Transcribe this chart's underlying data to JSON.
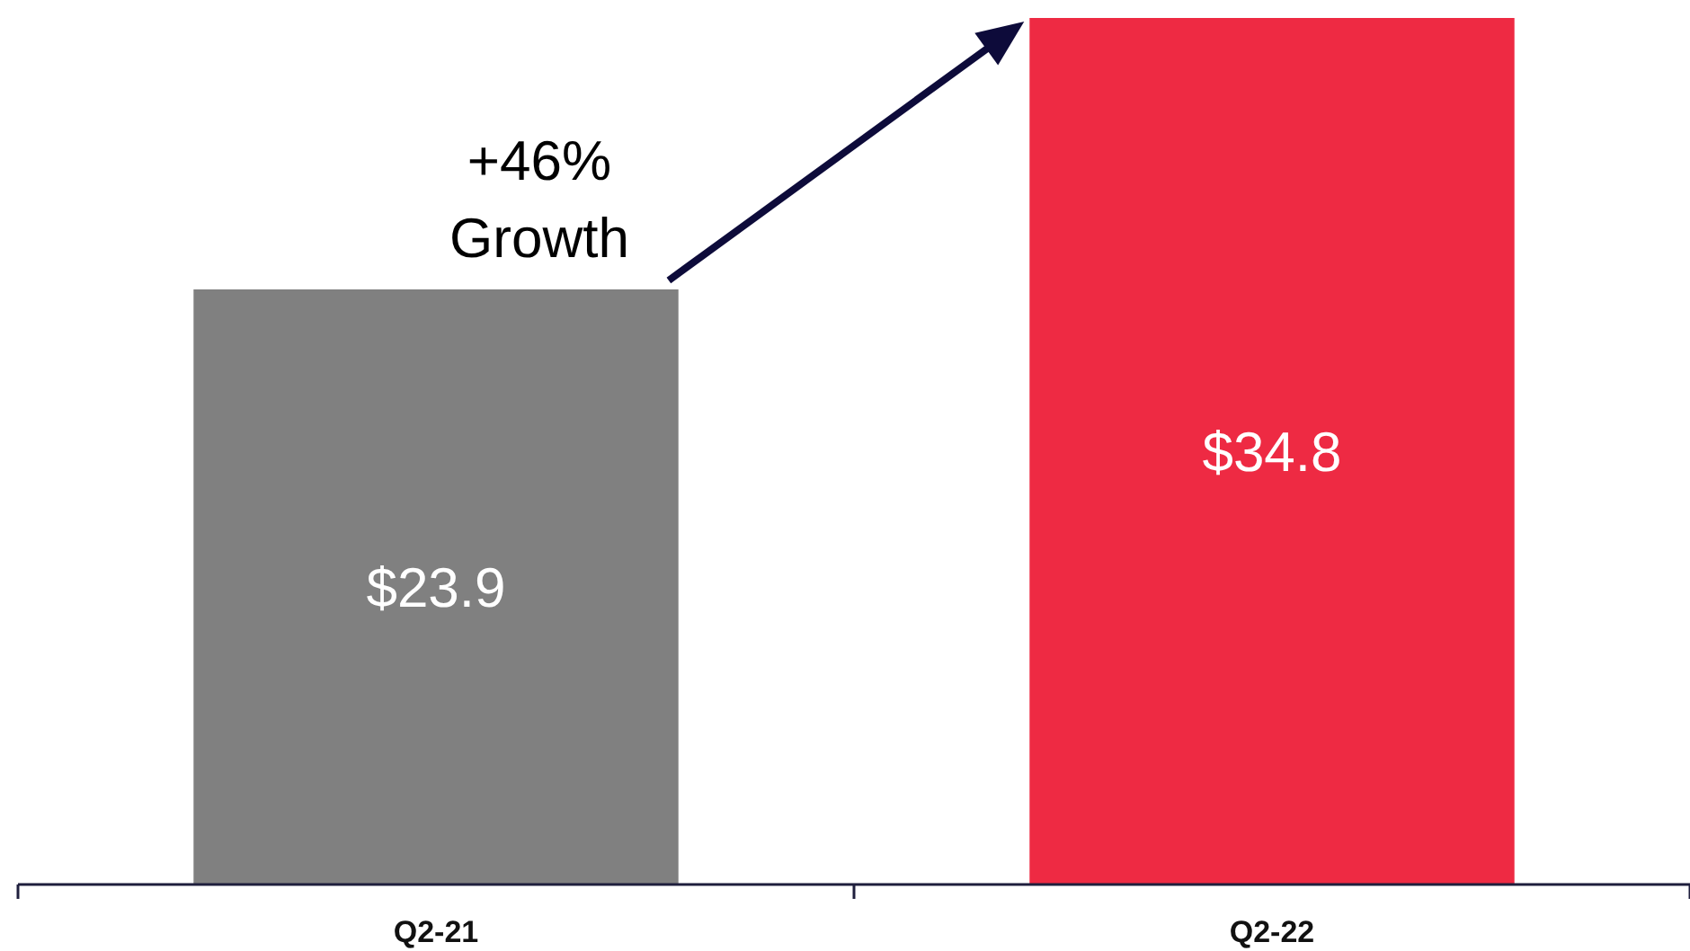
{
  "chart_data": {
    "type": "bar",
    "categories": [
      "Q2-21",
      "Q2-22"
    ],
    "values": [
      23.9,
      34.8
    ],
    "colors": [
      "#808080",
      "#ee2a43"
    ],
    "value_labels": [
      "$23.9",
      "$34.8"
    ],
    "annotations": [
      "+46%\nGrowth"
    ]
  }
}
